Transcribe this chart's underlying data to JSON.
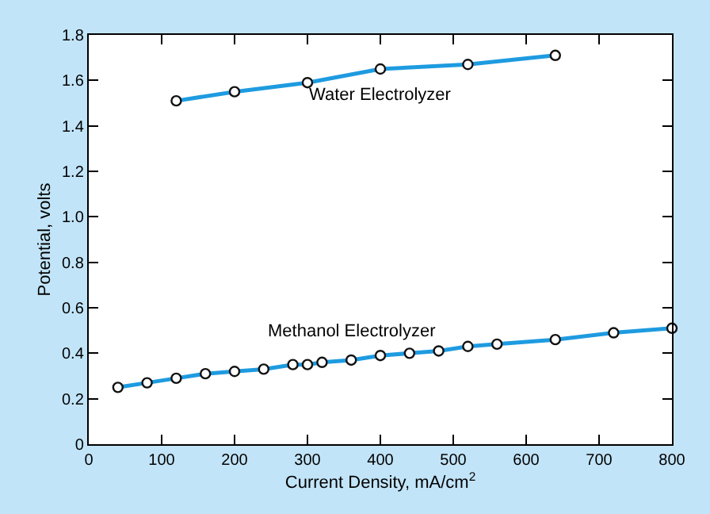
{
  "chart_data": {
    "type": "line",
    "xlabel": "Current Density, mA/cm$^{2}$",
    "ylabel": "Potential, volts",
    "xlim": [
      0,
      800
    ],
    "xticks": [
      0,
      100,
      200,
      300,
      400,
      500,
      600,
      700,
      800
    ],
    "ylim": [
      0,
      1.8
    ],
    "yticks": [
      0,
      0.2,
      0.4,
      0.6,
      0.8,
      {
        "value": 1,
        "label": "1.0"
      },
      1.2,
      1.4,
      1.6,
      1.8
    ],
    "marker": "circle",
    "legend": false,
    "series": [
      {
        "name": "Water Electrolyzer",
        "color": "#1e9be0",
        "x": [
          120,
          200,
          300,
          400,
          520,
          640
        ],
        "values": [
          1.51,
          1.55,
          1.59,
          1.65,
          1.67,
          1.71
        ]
      },
      {
        "name": "Methanol Electrolyzer",
        "color": "#1e9be0",
        "x": [
          40,
          80,
          120,
          160,
          200,
          240,
          280,
          300,
          320,
          360,
          400,
          440,
          480,
          520,
          560,
          640,
          720,
          800
        ],
        "values": [
          0.25,
          0.27,
          0.29,
          0.31,
          0.32,
          0.33,
          0.35,
          0.35,
          0.36,
          0.37,
          0.39,
          0.4,
          0.41,
          0.43,
          0.44,
          0.46,
          0.49,
          0.51
        ]
      }
    ]
  }
}
